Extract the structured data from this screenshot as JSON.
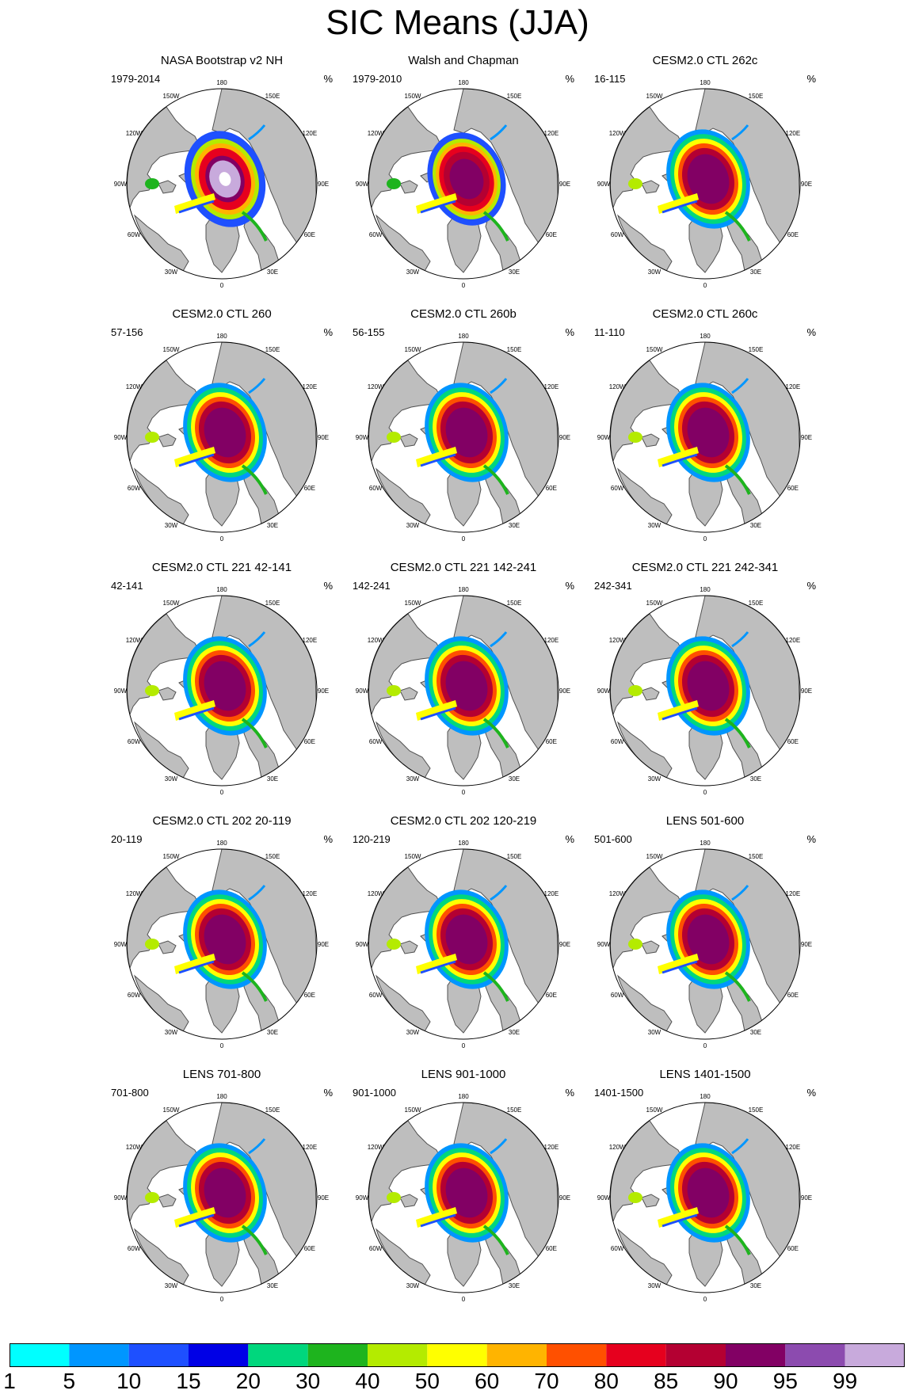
{
  "figure": {
    "title": "SIC Means (JJA)",
    "unit": "%",
    "lon_labels": [
      "180",
      "150E",
      "120E",
      "90E",
      "60E",
      "30E",
      "0",
      "30W",
      "60W",
      "90W",
      "120W",
      "150W"
    ]
  },
  "panels": [
    {
      "title": "NASA Bootstrap v2 NH",
      "years": "1979-2014",
      "variant": "obs1"
    },
    {
      "title": "Walsh and Chapman",
      "years": "1979-2010",
      "variant": "obs2"
    },
    {
      "title": "CESM2.0 CTL 262c",
      "years": "16-115",
      "variant": "model"
    },
    {
      "title": "CESM2.0 CTL 260",
      "years": "57-156",
      "variant": "model"
    },
    {
      "title": "CESM2.0 CTL 260b",
      "years": "56-155",
      "variant": "model"
    },
    {
      "title": "CESM2.0 CTL 260c",
      "years": "11-110",
      "variant": "model"
    },
    {
      "title": "CESM2.0 CTL 221 42-141",
      "years": "42-141",
      "variant": "model"
    },
    {
      "title": "CESM2.0 CTL 221 142-241",
      "years": "142-241",
      "variant": "model"
    },
    {
      "title": "CESM2.0 CTL 221 242-341",
      "years": "242-341",
      "variant": "model"
    },
    {
      "title": "CESM2.0 CTL 202 20-119",
      "years": "20-119",
      "variant": "model"
    },
    {
      "title": "CESM2.0 CTL 202 120-219",
      "years": "120-219",
      "variant": "model"
    },
    {
      "title": "LENS 501-600",
      "years": "501-600",
      "variant": "model"
    },
    {
      "title": "LENS 701-800",
      "years": "701-800",
      "variant": "model"
    },
    {
      "title": "LENS 901-1000",
      "years": "901-1000",
      "variant": "model"
    },
    {
      "title": "LENS 1401-1500",
      "years": "1401-1500",
      "variant": "model"
    }
  ],
  "colorbar": {
    "labels": [
      "1",
      "5",
      "10",
      "15",
      "20",
      "30",
      "40",
      "50",
      "60",
      "70",
      "80",
      "85",
      "90",
      "95",
      "99"
    ],
    "colors": [
      "#00ffff",
      "#0096ff",
      "#1e50ff",
      "#0000e6",
      "#00d77d",
      "#1eb41e",
      "#b4eb00",
      "#ffff00",
      "#ffb400",
      "#ff5000",
      "#e6001e",
      "#b40032",
      "#820064",
      "#8c4baf",
      "#c8aadc"
    ]
  },
  "colors": {
    "land": "#bebebe",
    "coast": "#505050",
    "ocean": "#ffffff"
  }
}
